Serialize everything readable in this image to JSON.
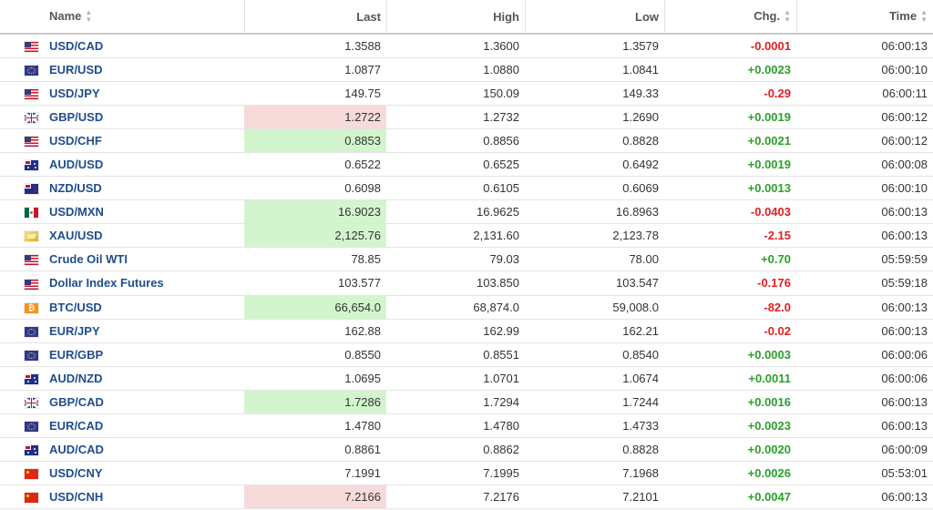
{
  "columns": {
    "name": "Name",
    "last": "Last",
    "high": "High",
    "low": "Low",
    "chg": "Chg.",
    "time": "Time"
  },
  "sort_icon": "sort-arrows-icon",
  "colors": {
    "link": "#1f4d8b",
    "positive": "#2ca02c",
    "negative": "#e02020",
    "flash_up": "#d2f5cd",
    "flash_down": "#f7dada"
  },
  "rows": [
    {
      "flag": "us",
      "name": "USD/CAD",
      "last": "1.3588",
      "high": "1.3600",
      "low": "1.3579",
      "chg": "-0.0001",
      "dir": "down",
      "time": "06:00:13",
      "flash": ""
    },
    {
      "flag": "eu",
      "name": "EUR/USD",
      "last": "1.0877",
      "high": "1.0880",
      "low": "1.0841",
      "chg": "+0.0023",
      "dir": "up",
      "time": "06:00:10",
      "flash": ""
    },
    {
      "flag": "us",
      "name": "USD/JPY",
      "last": "149.75",
      "high": "150.09",
      "low": "149.33",
      "chg": "-0.29",
      "dir": "down",
      "time": "06:00:11",
      "flash": ""
    },
    {
      "flag": "gb",
      "name": "GBP/USD",
      "last": "1.2722",
      "high": "1.2732",
      "low": "1.2690",
      "chg": "+0.0019",
      "dir": "up",
      "time": "06:00:12",
      "flash": "down"
    },
    {
      "flag": "us",
      "name": "USD/CHF",
      "last": "0.8853",
      "high": "0.8856",
      "low": "0.8828",
      "chg": "+0.0021",
      "dir": "up",
      "time": "06:00:12",
      "flash": "up"
    },
    {
      "flag": "au",
      "name": "AUD/USD",
      "last": "0.6522",
      "high": "0.6525",
      "low": "0.6492",
      "chg": "+0.0019",
      "dir": "up",
      "time": "06:00:08",
      "flash": ""
    },
    {
      "flag": "nz",
      "name": "NZD/USD",
      "last": "0.6098",
      "high": "0.6105",
      "low": "0.6069",
      "chg": "+0.0013",
      "dir": "up",
      "time": "06:00:10",
      "flash": ""
    },
    {
      "flag": "mx",
      "name": "USD/MXN",
      "last": "16.9023",
      "high": "16.9625",
      "low": "16.8963",
      "chg": "-0.0403",
      "dir": "down",
      "time": "06:00:13",
      "flash": "up"
    },
    {
      "flag": "gold",
      "name": "XAU/USD",
      "last": "2,125.76",
      "high": "2,131.60",
      "low": "2,123.78",
      "chg": "-2.15",
      "dir": "down",
      "time": "06:00:13",
      "flash": "up"
    },
    {
      "flag": "us",
      "name": "Crude Oil WTI",
      "last": "78.85",
      "high": "79.03",
      "low": "78.00",
      "chg": "+0.70",
      "dir": "up",
      "time": "05:59:59",
      "flash": ""
    },
    {
      "flag": "us",
      "name": "Dollar Index Futures",
      "last": "103.577",
      "high": "103.850",
      "low": "103.547",
      "chg": "-0.176",
      "dir": "down",
      "time": "05:59:18",
      "flash": ""
    },
    {
      "flag": "btc",
      "name": "BTC/USD",
      "last": "66,654.0",
      "high": "68,874.0",
      "low": "59,008.0",
      "chg": "-82.0",
      "dir": "down",
      "time": "06:00:13",
      "flash": "up"
    },
    {
      "flag": "eu",
      "name": "EUR/JPY",
      "last": "162.88",
      "high": "162.99",
      "low": "162.21",
      "chg": "-0.02",
      "dir": "down",
      "time": "06:00:13",
      "flash": ""
    },
    {
      "flag": "eu",
      "name": "EUR/GBP",
      "last": "0.8550",
      "high": "0.8551",
      "low": "0.8540",
      "chg": "+0.0003",
      "dir": "up",
      "time": "06:00:06",
      "flash": ""
    },
    {
      "flag": "au",
      "name": "AUD/NZD",
      "last": "1.0695",
      "high": "1.0701",
      "low": "1.0674",
      "chg": "+0.0011",
      "dir": "up",
      "time": "06:00:06",
      "flash": ""
    },
    {
      "flag": "gb",
      "name": "GBP/CAD",
      "last": "1.7286",
      "high": "1.7294",
      "low": "1.7244",
      "chg": "+0.0016",
      "dir": "up",
      "time": "06:00:13",
      "flash": "up"
    },
    {
      "flag": "eu",
      "name": "EUR/CAD",
      "last": "1.4780",
      "high": "1.4780",
      "low": "1.4733",
      "chg": "+0.0023",
      "dir": "up",
      "time": "06:00:13",
      "flash": ""
    },
    {
      "flag": "au",
      "name": "AUD/CAD",
      "last": "0.8861",
      "high": "0.8862",
      "low": "0.8828",
      "chg": "+0.0020",
      "dir": "up",
      "time": "06:00:09",
      "flash": ""
    },
    {
      "flag": "cn",
      "name": "USD/CNY",
      "last": "7.1991",
      "high": "7.1995",
      "low": "7.1968",
      "chg": "+0.0026",
      "dir": "up",
      "time": "05:53:01",
      "flash": ""
    },
    {
      "flag": "cn",
      "name": "USD/CNH",
      "last": "7.2166",
      "high": "7.2176",
      "low": "7.2101",
      "chg": "+0.0047",
      "dir": "up",
      "time": "06:00:13",
      "flash": "down"
    }
  ]
}
